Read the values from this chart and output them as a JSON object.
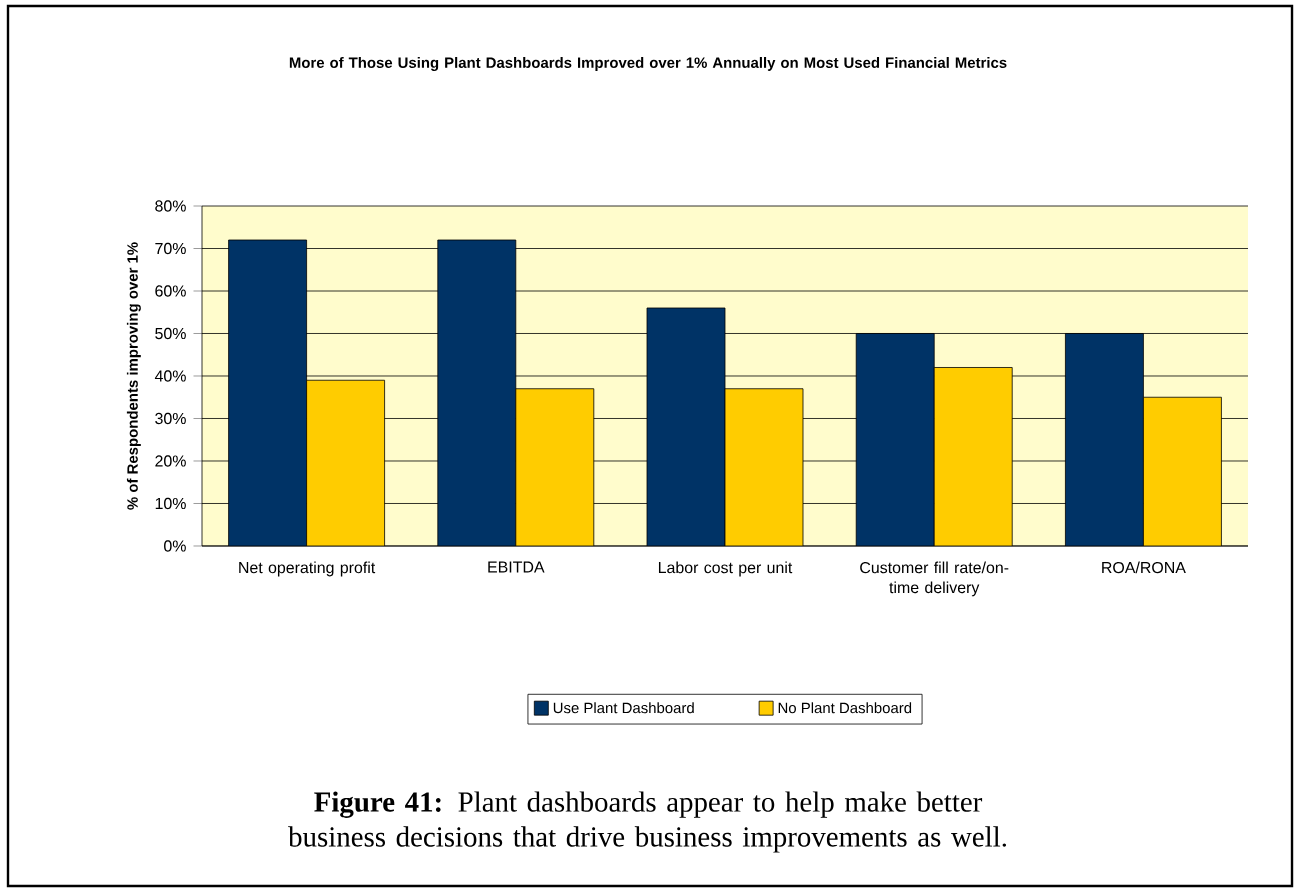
{
  "chart_data": {
    "type": "bar",
    "title": "More of Those Using Plant Dashboards Improved over 1% Annually on Most Used Financial Metrics",
    "ylabel": "% of Respondents improving over 1%",
    "categories": [
      "Net operating profit",
      "EBITDA",
      "Labor cost per unit",
      "Customer fill rate/on-time delivery",
      "ROA/RONA"
    ],
    "series": [
      {
        "name": "Use Plant Dashboard",
        "color": "#003366",
        "values": [
          72,
          72,
          56,
          50,
          50
        ]
      },
      {
        "name": "No Plant Dashboard",
        "color": "#ffcc00",
        "values": [
          39,
          37,
          37,
          42,
          35
        ]
      }
    ],
    "ylim": [
      0,
      80
    ],
    "yticks": [
      {
        "value": 0,
        "label": "0%"
      },
      {
        "value": 10,
        "label": "10%"
      },
      {
        "value": 20,
        "label": "20%"
      },
      {
        "value": 30,
        "label": "30%"
      },
      {
        "value": 40,
        "label": "40%"
      },
      {
        "value": 50,
        "label": "50%"
      },
      {
        "value": 60,
        "label": "60%"
      },
      {
        "value": 70,
        "label": "70%"
      },
      {
        "value": 80,
        "label": "80%"
      }
    ],
    "grid": "y",
    "legend": "bottom",
    "annotations": [
      "**Figure 41:** Plant dashboards appear to help make better business decisions that drive business improvements as well."
    ]
  }
}
